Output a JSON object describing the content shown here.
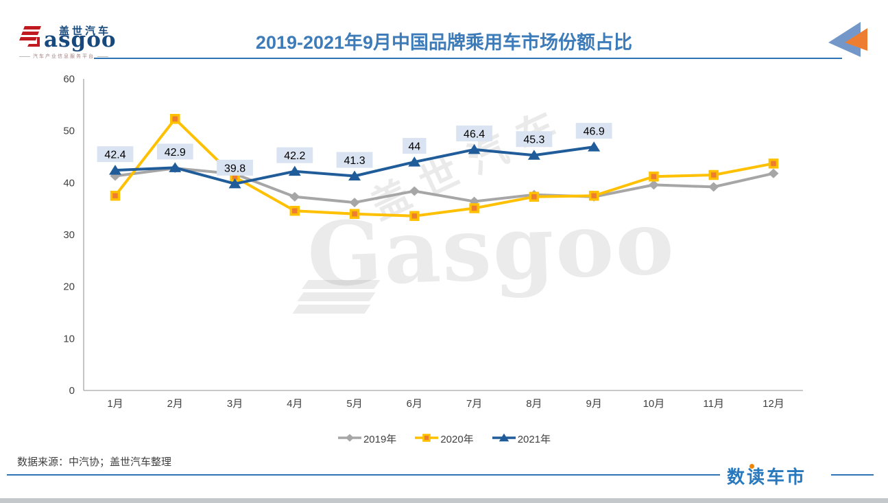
{
  "header": {
    "logo": {
      "brand_zh": "盖世汽车",
      "brand_en": "asgoo",
      "tagline": "汽车产业信息服务平台"
    },
    "title": "2019-2021年9月中国品牌乘用车市场份额占比"
  },
  "watermark": {
    "en": "Gasgoo",
    "zh": "盖世汽车"
  },
  "chart_data": {
    "type": "line",
    "title": "2019-2021年9月中国品牌乘用车市场份额占比",
    "categories": [
      "1月",
      "2月",
      "3月",
      "4月",
      "5月",
      "6月",
      "7月",
      "8月",
      "9月",
      "10月",
      "11月",
      "12月"
    ],
    "ylim": [
      0,
      60
    ],
    "yticks": [
      0,
      10,
      20,
      30,
      40,
      50,
      60
    ],
    "grid": false,
    "legend_position": "bottom",
    "axis_color": "#A6A6A6",
    "label_bg": "#D9E3F1",
    "series": [
      {
        "name": "2019年",
        "color": "#A6A6A6",
        "marker": "diamond",
        "values": [
          41.3,
          42.8,
          41.7,
          37.3,
          36.2,
          38.4,
          36.4,
          37.7,
          37.3,
          39.6,
          39.2,
          41.8
        ]
      },
      {
        "name": "2020年",
        "color": "#FFC000",
        "marker": "square",
        "marker_fill": "#ED7D31",
        "values": [
          37.5,
          52.3,
          41.1,
          34.6,
          34.0,
          33.6,
          35.1,
          37.3,
          37.5,
          41.2,
          41.5,
          43.7
        ]
      },
      {
        "name": "2021年",
        "color": "#1F5C99",
        "marker": "triangle",
        "values": [
          42.4,
          42.9,
          39.8,
          42.2,
          41.3,
          44,
          46.4,
          45.3,
          46.9,
          null,
          null,
          null
        ],
        "data_labels": [
          "42.4",
          "42.9",
          "39.8",
          "42.2",
          "41.3",
          "44",
          "46.4",
          "45.3",
          "46.9"
        ]
      }
    ]
  },
  "footer": {
    "source": "数据来源：中汽协；盖世汽车整理",
    "brand": "数读车市"
  }
}
